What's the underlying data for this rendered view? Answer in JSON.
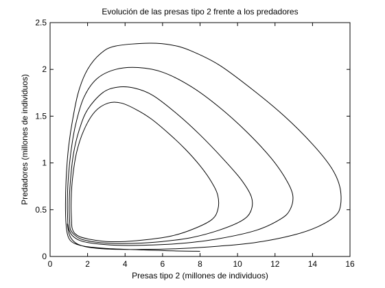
{
  "chart_data": {
    "type": "line",
    "title": "Evolución de las presas tipo 2 frente a los predadores",
    "xlabel": "Presas tipo 2 (millones de individuos)",
    "ylabel": "Predadores (millones de individuos)",
    "xlim": [
      0,
      16
    ],
    "ylim": [
      0,
      2.5
    ],
    "xticks": [
      0,
      2,
      4,
      6,
      8,
      10,
      12,
      14,
      16
    ],
    "yticks": [
      0,
      0.5,
      1,
      1.5,
      2,
      2.5
    ],
    "xtick_labels": [
      "0",
      "2",
      "4",
      "6",
      "8",
      "10",
      "12",
      "14",
      "16"
    ],
    "ytick_labels": [
      "0",
      "0.5",
      "1",
      "1.5",
      "2",
      "2.5"
    ],
    "grid": false,
    "line_color": "#000000",
    "series": [
      {
        "points": [
          [
            8.0,
            0.055
          ],
          [
            6.5,
            0.06
          ],
          [
            5.0,
            0.07
          ],
          [
            3.0,
            0.085
          ],
          [
            1.8,
            0.11
          ],
          [
            1.2,
            0.15
          ],
          [
            0.95,
            0.22
          ],
          [
            0.85,
            0.35
          ],
          [
            0.82,
            0.55
          ],
          [
            0.85,
            0.8
          ],
          [
            0.95,
            1.1
          ],
          [
            1.15,
            1.4
          ],
          [
            1.5,
            1.75
          ],
          [
            2.0,
            2.0
          ],
          [
            2.7,
            2.17
          ],
          [
            3.5,
            2.25
          ],
          [
            5.3,
            2.28
          ],
          [
            6.5,
            2.26
          ],
          [
            7.5,
            2.2
          ],
          [
            9.0,
            2.05
          ],
          [
            10.7,
            1.8
          ],
          [
            12.5,
            1.5
          ],
          [
            14.0,
            1.2
          ],
          [
            15.0,
            0.95
          ],
          [
            15.45,
            0.75
          ],
          [
            15.5,
            0.55
          ],
          [
            15.2,
            0.43
          ],
          [
            14.3,
            0.32
          ],
          [
            13.0,
            0.23
          ],
          [
            11.0,
            0.15
          ],
          [
            9.0,
            0.11
          ],
          [
            7.0,
            0.085
          ],
          [
            5.0,
            0.075
          ],
          [
            3.0,
            0.08
          ],
          [
            2.0,
            0.1
          ],
          [
            1.4,
            0.14
          ],
          [
            1.05,
            0.22
          ],
          [
            0.92,
            0.35
          ]
        ]
      },
      {
        "points": [
          [
            0.95,
            0.35
          ],
          [
            0.92,
            0.55
          ],
          [
            0.96,
            0.8
          ],
          [
            1.1,
            1.1
          ],
          [
            1.35,
            1.4
          ],
          [
            1.8,
            1.7
          ],
          [
            2.5,
            1.9
          ],
          [
            3.5,
            2.0
          ],
          [
            4.7,
            2.02
          ],
          [
            6.0,
            1.97
          ],
          [
            7.5,
            1.82
          ],
          [
            9.0,
            1.6
          ],
          [
            10.5,
            1.33
          ],
          [
            11.8,
            1.05
          ],
          [
            12.6,
            0.82
          ],
          [
            12.95,
            0.65
          ],
          [
            12.8,
            0.5
          ],
          [
            12.3,
            0.4
          ],
          [
            11.0,
            0.28
          ],
          [
            9.0,
            0.19
          ],
          [
            7.0,
            0.14
          ],
          [
            5.0,
            0.12
          ],
          [
            3.5,
            0.12
          ],
          [
            2.3,
            0.14
          ],
          [
            1.6,
            0.17
          ],
          [
            1.2,
            0.22
          ],
          [
            1.02,
            0.28
          ],
          [
            0.95,
            0.35
          ]
        ]
      },
      {
        "points": [
          [
            1.05,
            0.35
          ],
          [
            1.02,
            0.55
          ],
          [
            1.08,
            0.8
          ],
          [
            1.25,
            1.1
          ],
          [
            1.55,
            1.35
          ],
          [
            2.0,
            1.57
          ],
          [
            2.8,
            1.75
          ],
          [
            3.6,
            1.81
          ],
          [
            4.5,
            1.8
          ],
          [
            5.5,
            1.72
          ],
          [
            6.8,
            1.52
          ],
          [
            8.0,
            1.3
          ],
          [
            9.2,
            1.05
          ],
          [
            10.2,
            0.82
          ],
          [
            10.75,
            0.63
          ],
          [
            10.7,
            0.48
          ],
          [
            10.2,
            0.38
          ],
          [
            9.0,
            0.28
          ],
          [
            7.5,
            0.2
          ],
          [
            6.0,
            0.16
          ],
          [
            4.5,
            0.14
          ],
          [
            3.2,
            0.14
          ],
          [
            2.2,
            0.16
          ],
          [
            1.6,
            0.19
          ],
          [
            1.25,
            0.24
          ],
          [
            1.08,
            0.29
          ],
          [
            1.05,
            0.35
          ]
        ]
      },
      {
        "points": [
          [
            1.15,
            0.35
          ],
          [
            1.12,
            0.55
          ],
          [
            1.18,
            0.8
          ],
          [
            1.4,
            1.1
          ],
          [
            1.8,
            1.35
          ],
          [
            2.4,
            1.55
          ],
          [
            3.1,
            1.64
          ],
          [
            3.8,
            1.64
          ],
          [
            4.6,
            1.57
          ],
          [
            5.4,
            1.47
          ],
          [
            6.3,
            1.32
          ],
          [
            7.2,
            1.15
          ],
          [
            8.0,
            0.97
          ],
          [
            8.6,
            0.8
          ],
          [
            8.95,
            0.65
          ],
          [
            8.95,
            0.5
          ],
          [
            8.6,
            0.39
          ],
          [
            7.6,
            0.29
          ],
          [
            6.5,
            0.22
          ],
          [
            5.2,
            0.18
          ],
          [
            4.0,
            0.16
          ],
          [
            3.0,
            0.16
          ],
          [
            2.2,
            0.18
          ],
          [
            1.6,
            0.21
          ],
          [
            1.3,
            0.25
          ],
          [
            1.18,
            0.3
          ],
          [
            1.15,
            0.35
          ]
        ]
      }
    ]
  }
}
